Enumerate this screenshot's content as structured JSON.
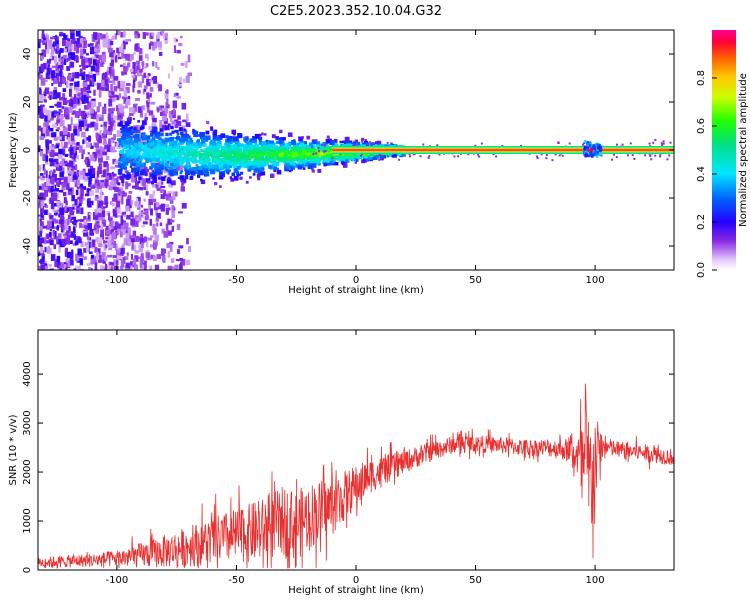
{
  "figure": {
    "title": "C2E5.2023.352.10.04.G32"
  },
  "chart_data": [
    {
      "type": "heatmap",
      "title": "C2E5.2023.352.10.04.G32",
      "xlabel": "Height of straight line (km)",
      "ylabel": "Frequency (Hz)",
      "xlim": [
        -133,
        133
      ],
      "ylim": [
        -50,
        50
      ],
      "xticks": [
        -100,
        -50,
        0,
        50,
        100
      ],
      "yticks": [
        -40,
        -20,
        0,
        20,
        40
      ],
      "colorbar": {
        "label": "Normalized spectral amplitude",
        "range": [
          0,
          1
        ],
        "ticks": [
          "0.0",
          "0.2",
          "0.4",
          "0.6",
          "0.8"
        ],
        "tick_values": [
          0,
          0.2,
          0.4,
          0.6,
          0.8
        ]
      },
      "features": {
        "carrier_frequency_hz": 0,
        "carrier_band_height_km": [
          -10,
          133
        ],
        "carrier_amplitude": 0.9,
        "scatter_region_height_km": [
          -133,
          -100
        ],
        "scatter_frequency_range_hz": [
          -50,
          50
        ],
        "narrowing_region_height_km": [
          -100,
          20
        ],
        "bright_spot_height_km": [
          95,
          102
        ]
      }
    },
    {
      "type": "line",
      "xlabel": "Height of straight line (km)",
      "ylabel": "SNR (10 * v/v)",
      "xlim": [
        -133,
        133
      ],
      "ylim": [
        0,
        4900
      ],
      "xticks": [
        -100,
        -50,
        0,
        50,
        100
      ],
      "yticks": [
        0,
        1000,
        2000,
        3000,
        4000
      ],
      "series": [
        {
          "color": "#e83030",
          "x": [
            -133,
            -120,
            -110,
            -100,
            -90,
            -80,
            -70,
            -60,
            -50,
            -40,
            -35,
            -30,
            -25,
            -20,
            -15,
            -10,
            -5,
            0,
            5,
            10,
            15,
            20,
            30,
            40,
            45,
            50,
            60,
            70,
            80,
            90,
            93,
            96,
            98,
            100,
            102,
            105,
            110,
            120,
            133
          ],
          "y": [
            150,
            180,
            200,
            230,
            300,
            380,
            480,
            600,
            700,
            800,
            900,
            1000,
            900,
            1100,
            1200,
            1300,
            1500,
            1700,
            1900,
            2000,
            2100,
            2200,
            2400,
            2550,
            2600,
            2580,
            2550,
            2500,
            2500,
            2450,
            2300,
            2000,
            1800,
            2200,
            2500,
            2500,
            2450,
            2400,
            2300
          ],
          "spread": [
            130,
            160,
            180,
            220,
            320,
            420,
            520,
            620,
            700,
            800,
            850,
            900,
            900,
            850,
            800,
            750,
            650,
            550,
            450,
            400,
            350,
            300,
            260,
            230,
            220,
            220,
            220,
            220,
            230,
            300,
            600,
            1800,
            1700,
            1300,
            500,
            250,
            230,
            220,
            220
          ]
        }
      ]
    }
  ]
}
